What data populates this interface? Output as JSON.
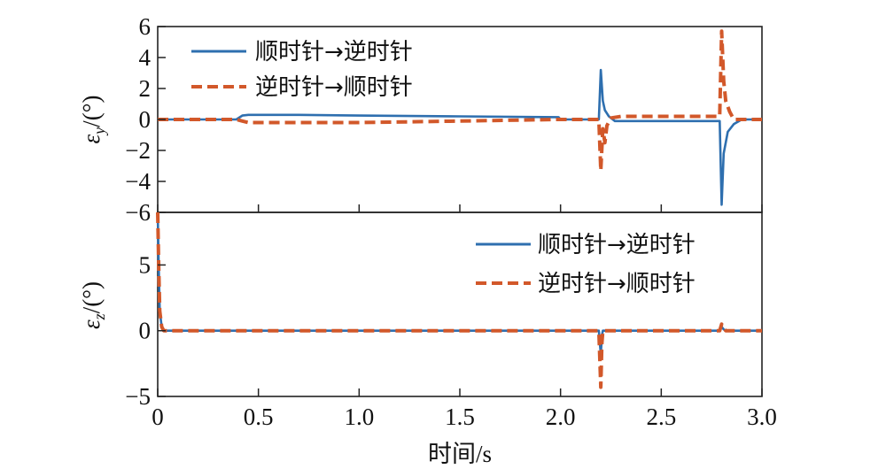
{
  "colors": {
    "blue": "#2e6faf",
    "orange": "#d2582a"
  },
  "chart_data": [
    {
      "type": "line",
      "ylabel_main": "ε",
      "ylabel_sub": "y",
      "ylabel_unit": "/(°)",
      "xlim": [
        0,
        3.0
      ],
      "ylim": [
        -6,
        6
      ],
      "yticks": [
        -6,
        -4,
        -2,
        0,
        2,
        4,
        6
      ],
      "ytick_labels": [
        "−6",
        "−4",
        "−2",
        "0",
        "2",
        "4",
        "6"
      ],
      "legend_position": "top-left",
      "series": [
        {
          "name": "顺时针→逆时针",
          "x": [
            0,
            0.39,
            0.42,
            0.45,
            0.7,
            1.0,
            1.5,
            1.99,
            2.0,
            2.19,
            2.2,
            2.21,
            2.22,
            2.24,
            2.27,
            2.35,
            2.79,
            2.8,
            2.81,
            2.83,
            2.86,
            2.9,
            3.0
          ],
          "y": [
            0,
            0,
            0.25,
            0.3,
            0.3,
            0.25,
            0.2,
            0.15,
            0,
            0,
            3.2,
            1.2,
            0.6,
            0.2,
            -0.1,
            -0.1,
            -0.1,
            -5.5,
            -2.2,
            -0.8,
            -0.3,
            0,
            0
          ],
          "style": "solid"
        },
        {
          "name": "逆时针→顺时针",
          "x": [
            0,
            0.39,
            0.42,
            0.45,
            1.0,
            1.5,
            1.99,
            2.0,
            2.19,
            2.2,
            2.21,
            2.22,
            2.23,
            2.25,
            2.3,
            2.79,
            2.8,
            2.81,
            2.82,
            2.84,
            2.86,
            2.9,
            3.0
          ],
          "y": [
            0,
            0,
            -0.1,
            -0.2,
            -0.2,
            -0.1,
            0,
            0,
            0,
            -3.3,
            -0.6,
            -1.5,
            -0.4,
            0.1,
            0.2,
            0.2,
            5.7,
            2.5,
            1.2,
            0.5,
            0,
            0,
            0
          ],
          "style": "dashed"
        }
      ]
    },
    {
      "type": "line",
      "ylabel_main": "ε",
      "ylabel_sub": "z",
      "ylabel_unit": "/(°)",
      "xlabel": "时间/s",
      "xlim": [
        0,
        3.0
      ],
      "ylim": [
        -5,
        9
      ],
      "yticks": [
        -5,
        0,
        5
      ],
      "ytick_labels": [
        "−5",
        "0",
        "5"
      ],
      "xticks": [
        0,
        0.5,
        1.0,
        1.5,
        2.0,
        2.5,
        3.0
      ],
      "xtick_labels": [
        "0",
        "0.5",
        "1.0",
        "1.5",
        "2.0",
        "2.5",
        "3.0"
      ],
      "legend_position": "top-right",
      "series": [
        {
          "name": "顺时针→逆时针",
          "x": [
            0,
            0.005,
            0.01,
            0.02,
            0.03,
            0.05,
            2.19,
            2.2,
            2.205,
            2.21,
            2.79,
            2.8,
            2.81,
            2.82,
            3.0
          ],
          "y": [
            9,
            5,
            1.5,
            0.3,
            0,
            0,
            0,
            -1.8,
            -0.4,
            0,
            0,
            0.3,
            0.1,
            0,
            0
          ],
          "style": "solid"
        },
        {
          "name": "逆时针→顺时针",
          "x": [
            0,
            0.005,
            0.01,
            0.02,
            0.03,
            0.05,
            2.19,
            2.2,
            2.205,
            2.21,
            2.79,
            2.8,
            2.81,
            2.82,
            3.0
          ],
          "y": [
            9,
            5,
            1.5,
            0.3,
            0,
            0,
            0,
            -4.3,
            -1,
            0,
            0,
            0.5,
            0.2,
            0,
            0
          ],
          "style": "dashed"
        }
      ]
    }
  ]
}
